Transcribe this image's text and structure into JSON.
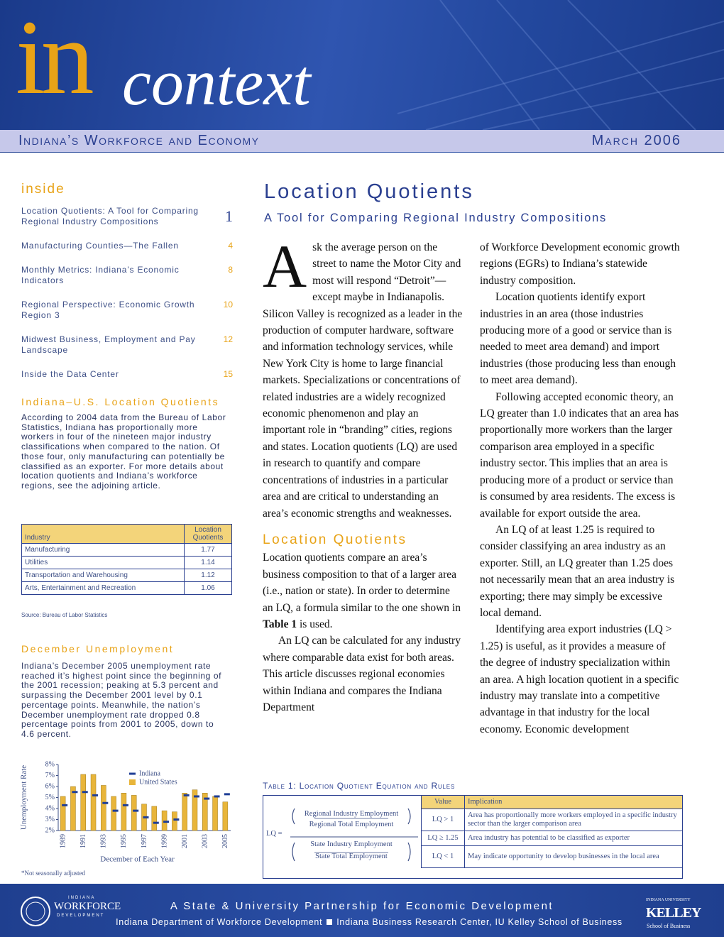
{
  "header": {
    "logo_in": "in",
    "logo_context": "context",
    "subtitle": "Indiana’s Workforce and Economy",
    "date": "March 2006"
  },
  "sidebar": {
    "inside_title": "inside",
    "contents": [
      {
        "title": "Location Quotients: A Tool for Comparing Regional Industry Compositions",
        "page": 1
      },
      {
        "title": "Manufacturing Counties—The Fallen",
        "page": 4
      },
      {
        "title": "Monthly Metrics: Indiana’s Economic Indicators",
        "page": 8
      },
      {
        "title": "Regional Perspective: Economic Growth Region 3",
        "page": 10
      },
      {
        "title": "Midwest Business, Employment and Pay Landscape",
        "page": 12
      },
      {
        "title": "Inside the Data Center",
        "page": 15
      }
    ],
    "lq_heading": "Indiana–U.S. Location Quotients",
    "lq_text": "According to 2004 data from the Bureau of Labor Statistics, Indiana has proportionally more workers in four of the nineteen major industry classifications when compared to the nation. Of those four, only manufacturing can potentially be classified as an exporter. For more details about location quotients and Indiana’s workforce regions, see the adjoining article.",
    "lq_table": {
      "header": [
        "Industry",
        "Location Quotients"
      ],
      "rows": [
        [
          "Manufacturing",
          1.77
        ],
        [
          "Utilities",
          1.14
        ],
        [
          "Transportation and Warehousing",
          1.12
        ],
        [
          "Arts, Entertainment and Recreation",
          1.06
        ]
      ]
    },
    "source": "Source: Bureau of Labor Statistics",
    "unemp_heading": "December Unemployment",
    "unemp_text": "Indiana’s December 2005 unemployment rate reached it’s highest point since the beginning of the 2001 recession; peaking at 5.3 percent and surpassing the December 2001 level by 0.1 percentage points. Meanwhile, the nation’s December unemployment rate dropped 0.8 percentage points from 2001 to 2005, down to 4.6 percent."
  },
  "chart_data": {
    "type": "bar",
    "y_label": "Unemployment Rate",
    "x_label": "December of Each Year",
    "note": "*Not seasonally adjusted",
    "categories": [
      "1989",
      null,
      "1991",
      null,
      "1993",
      null,
      "1995",
      null,
      "1997",
      null,
      "1999",
      null,
      "2001",
      null,
      "2003",
      null,
      "2005"
    ],
    "series": [
      {
        "name": "Indiana",
        "color": "#1f3e96",
        "values": [
          4.3,
          5.5,
          5.5,
          5.2,
          4.5,
          3.8,
          4.3,
          3.8,
          3.2,
          2.7,
          2.8,
          3.0,
          5.2,
          5.1,
          4.9,
          5.1,
          5.3
        ]
      },
      {
        "name": "United States",
        "color": "#e8b53a",
        "values": [
          5.1,
          6.0,
          7.1,
          7.1,
          6.1,
          5.1,
          5.4,
          5.2,
          4.4,
          4.2,
          3.8,
          3.7,
          5.4,
          5.7,
          5.4,
          5.1,
          4.6
        ]
      }
    ],
    "ylim": [
      2,
      8
    ],
    "yticks": [
      {
        "value": 2,
        "label": "2%"
      },
      {
        "value": 3,
        "label": "3%"
      },
      {
        "value": 4,
        "label": "4%"
      },
      {
        "value": 5,
        "label": "5%"
      },
      {
        "value": 6,
        "label": "6%"
      },
      {
        "value": 7,
        "label": "7%"
      },
      {
        "value": 8,
        "label": "8%"
      }
    ]
  },
  "article": {
    "title": "Location Quotients",
    "subtitle": "A Tool for Comparing Regional Industry Compositions",
    "drop_cap": "A",
    "col1_p1": "sk the average person on the street to name the Motor City and most will respond “Detroit”—except maybe in Indianapolis. Silicon Valley is recognized as a leader in the production of computer hardware, software and information technology services, while New York City is home to large financial markets. Specializations or concentrations of related industries are a widely recognized economic phenomenon and play an important role in “branding” cities, regions and states. Location quotients (LQ) are used in research to quantify and compare concentrations of industries in a particular area and are critical to understanding an area’s economic strengths and weaknesses.",
    "section_heading": "Location Quotients",
    "col1_p2": [
      "Location quotients compare an area’s business composition to that of a larger area (i.e., nation or state). In order to determine an LQ, a formula similar to the one shown in ",
      "Table 1",
      " is used."
    ],
    "col1_p3": "An LQ can be calculated for any industry where comparable data exist for both areas. This article discusses regional economies within Indiana and compares the Indiana Department",
    "col2_p1": "of Workforce Development economic growth regions (EGRs) to Indiana’s statewide industry composition.",
    "col2_p2": "Location quotients identify export industries in an area (those industries producing more of a good or service than is needed to meet area demand) and import industries (those producing less than enough to meet area demand).",
    "col2_p3": "Following accepted economic theory, an LQ greater than 1.0 indicates that an area has proportionally more workers than the larger comparison area employed in a specific industry sector. This implies that an area is producing more of a product or service than is consumed by area residents. The excess is available for export outside the area.",
    "col2_p4": "An LQ of at least 1.25 is required to consider classifying an area industry as an exporter. Still, an LQ greater than 1.25 does not necessarily mean that an area industry is exporting; there may simply be excessive local demand.",
    "col2_p5": "Identifying area export industries (LQ > 1.25) is useful, as it provides a measure of the degree of industry specialization within an area. A high location quotient in a specific industry may translate into a competitive advantage in that industry for the local economy. Economic development"
  },
  "table1": {
    "caption": "Table 1: Location Quotient Equation and Rules",
    "lq_label": "LQ =",
    "numerator_top": "Regional Industry Employment",
    "numerator_bottom": "Regional Total Employment",
    "denominator_top": "State Industry Employment",
    "denominator_bottom": "State Total Employment",
    "header": [
      "Value",
      "Implication"
    ],
    "rows": [
      [
        "LQ > 1",
        "Area has proportionally more workers employed in a specific industry sector than the larger comparison area"
      ],
      [
        "LQ ≥ 1.25",
        "Area industry has potential to be classified as exporter"
      ],
      [
        "LQ < 1",
        "May indicate opportunity to develop businesses in the local area"
      ]
    ]
  },
  "footer": {
    "tagline": "A State & University Partnership for Economic Development",
    "partner1": "Indiana Department of Workforce Development",
    "partner2": "Indiana Business Research Center, IU Kelley School of Business",
    "logo_left_top": "INDIANA",
    "logo_left_main": "WORKFORCE",
    "logo_left_bottom": "DEVELOPMENT",
    "logo_right_top": "INDIANA UNIVERSITY",
    "logo_right_main": "KELLEY",
    "logo_right_bottom": "School of Business"
  }
}
